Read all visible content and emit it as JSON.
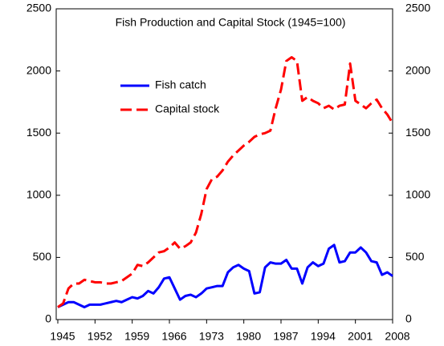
{
  "chart_data": {
    "type": "line",
    "title": "Fish Production and Capital Stock (1945=100)",
    "x": [
      1945,
      1946,
      1947,
      1948,
      1949,
      1950,
      1951,
      1952,
      1953,
      1954,
      1955,
      1956,
      1957,
      1958,
      1959,
      1960,
      1961,
      1962,
      1963,
      1964,
      1965,
      1966,
      1967,
      1968,
      1969,
      1970,
      1971,
      1972,
      1973,
      1974,
      1975,
      1976,
      1977,
      1978,
      1979,
      1980,
      1981,
      1982,
      1983,
      1984,
      1985,
      1986,
      1987,
      1988,
      1989,
      1990,
      1991,
      1992,
      1993,
      1994,
      1995,
      1996,
      1997,
      1998,
      1999,
      2000,
      2001,
      2002,
      2003,
      2004,
      2005,
      2006,
      2007,
      2008
    ],
    "series": [
      {
        "name": "Fish catch",
        "color": "#0000ff",
        "dash": false,
        "values": [
          100,
          120,
          140,
          140,
          120,
          100,
          120,
          120,
          120,
          130,
          140,
          150,
          140,
          160,
          180,
          170,
          190,
          230,
          210,
          260,
          330,
          340,
          250,
          160,
          190,
          200,
          180,
          210,
          250,
          260,
          270,
          270,
          380,
          420,
          440,
          410,
          390,
          210,
          220,
          420,
          460,
          450,
          450,
          480,
          410,
          410,
          290,
          420,
          460,
          430,
          450,
          570,
          600,
          460,
          470,
          540,
          540,
          580,
          540,
          470,
          460,
          360,
          380,
          350
        ]
      },
      {
        "name": "Capital stock",
        "color": "#ff0000",
        "dash": true,
        "values": [
          100,
          130,
          250,
          290,
          290,
          320,
          310,
          300,
          300,
          290,
          290,
          300,
          310,
          340,
          370,
          440,
          430,
          460,
          500,
          540,
          550,
          580,
          620,
          570,
          590,
          620,
          700,
          850,
          1050,
          1130,
          1150,
          1200,
          1270,
          1320,
          1360,
          1400,
          1430,
          1470,
          1490,
          1500,
          1520,
          1700,
          1850,
          2080,
          2110,
          2080,
          1760,
          1790,
          1760,
          1740,
          1700,
          1720,
          1690,
          1720,
          1730,
          2060,
          1760,
          1730,
          1700,
          1740,
          1770,
          1700,
          1650,
          1580
        ]
      }
    ],
    "xlim": [
      1945,
      2008
    ],
    "xticks": [
      1945,
      1952,
      1959,
      1966,
      1973,
      1980,
      1987,
      1994,
      2001,
      2008
    ],
    "ylim": [
      0,
      2500
    ],
    "yticks": [
      0,
      500,
      1000,
      1500,
      2000,
      2500
    ],
    "y2lim": [
      0,
      2500
    ],
    "y2ticks": [
      0,
      500,
      1000,
      1500,
      2000,
      2500
    ],
    "legend": "upper left",
    "grid": false
  }
}
